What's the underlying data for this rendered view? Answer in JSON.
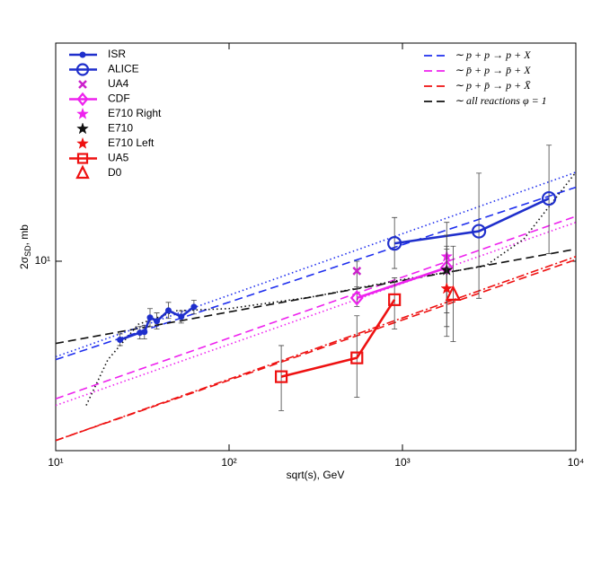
{
  "chart_data": {
    "type": "scatter",
    "x_label": "sqrt(s), GeV",
    "y_label": {
      "main": "2σ",
      "sub": "SD",
      "rest": ", mb"
    },
    "xlog": true,
    "ylog": true,
    "xlim": [
      10,
      10000
    ],
    "ylim": [
      3,
      40
    ],
    "xticks": [
      {
        "value": 10,
        "label": "10¹"
      },
      {
        "value": 100,
        "label": "10²"
      },
      {
        "value": 1000,
        "label": "10³"
      },
      {
        "value": 10000,
        "label": "10⁴"
      }
    ],
    "yticks": [
      {
        "value": 10,
        "label": "10¹"
      }
    ],
    "series": [
      {
        "name": "ISR",
        "color": "#1f2fcc",
        "marker": "dot",
        "line": true,
        "x": [
          23.5,
          30.6,
          32.5,
          35,
          38.3,
          44.7,
          53,
          62.7
        ],
        "values": [
          6.07,
          6.35,
          6.38,
          6.99,
          6.83,
          7.31,
          7.03,
          7.48
        ],
        "err_low": [
          5.85,
          6.1,
          6.1,
          6.6,
          6.5,
          6.95,
          6.75,
          7.15
        ],
        "err_high": [
          6.3,
          6.6,
          6.65,
          7.4,
          7.2,
          7.7,
          7.3,
          7.8
        ]
      },
      {
        "name": "ALICE",
        "color": "#1f2fcc",
        "marker": "circle",
        "line": true,
        "x": [
          900,
          2760,
          7000
        ],
        "values": [
          11.2,
          12.1,
          14.9
        ],
        "err_low": [
          9.55,
          7.9,
          10.5
        ],
        "err_high": [
          13.2,
          17.5,
          20.9
        ]
      },
      {
        "name": "UA4",
        "color": "#cc22cc",
        "marker": "cross",
        "line": false,
        "x": [
          546
        ],
        "values": [
          9.4
        ],
        "err_low": [
          8.5
        ],
        "err_high": [
          10.0
        ]
      },
      {
        "name": "CDF",
        "color": "#ee22ee",
        "marker": "diamond",
        "line": true,
        "x": [
          546,
          1800
        ],
        "values": [
          7.92,
          9.6
        ],
        "err_low": [
          7.5,
          8.3
        ],
        "err_high": [
          8.4,
          11.0
        ]
      },
      {
        "name": "E710 Right",
        "color": "#ee22ee",
        "marker": "star",
        "line": false,
        "x": [
          1800
        ],
        "values": [
          10.3
        ],
        "err_low": [
          7.2
        ],
        "err_high": [
          12.8
        ]
      },
      {
        "name": "E710",
        "color": "#111111",
        "marker": "star",
        "line": false,
        "x": [
          1800
        ],
        "values": [
          9.45
        ],
        "err_low": [
          6.6
        ],
        "err_high": [
          11.8
        ]
      },
      {
        "name": "E710 Left",
        "color": "#ee1111",
        "marker": "star",
        "line": false,
        "x": [
          1800
        ],
        "values": [
          8.4
        ],
        "err_low": [
          6.2
        ],
        "err_high": [
          10.8
        ]
      },
      {
        "name": "UA5",
        "color": "#ee1111",
        "marker": "square",
        "line": true,
        "x": [
          200,
          546,
          900
        ],
        "values": [
          4.8,
          5.41,
          7.83
        ],
        "err_low": [
          3.87,
          4.21,
          6.5
        ],
        "err_high": [
          5.85,
          7.07,
          9.0
        ]
      },
      {
        "name": "D0",
        "color": "#ee1111",
        "marker": "triangle",
        "line": false,
        "x": [
          1960
        ],
        "values": [
          8.1
        ],
        "err_low": [
          6.0
        ],
        "err_high": [
          11.0
        ]
      }
    ],
    "fits": [
      {
        "name": "∼ p + p → p + X",
        "color": "#1f2fee",
        "dash": "dashed",
        "x": [
          10,
          10000
        ],
        "values": [
          5.35,
          16.0
        ]
      },
      {
        "name": "∼ p̄ + p → p̄ + X",
        "color": "#ee22ee",
        "dash": "dashed",
        "x": [
          10,
          10000
        ],
        "values": [
          4.17,
          13.3
        ]
      },
      {
        "name": "∼ p + p̄ → p + X̄",
        "color": "#ee1111",
        "dash": "dashed",
        "x": [
          10,
          10000
        ],
        "values": [
          3.2,
          10.1
        ]
      },
      {
        "name": "∼ all reactions φ = 1",
        "color": "#111111",
        "dash": "dashed",
        "x": [
          10,
          10000
        ],
        "values": [
          5.93,
          10.8
        ]
      },
      {
        "color": "#1f2fee",
        "dash": "dotted",
        "x": [
          10,
          10000
        ],
        "values": [
          5.45,
          17.6
        ]
      },
      {
        "color": "#ee22ee",
        "dash": "dotted",
        "x": [
          10,
          10000
        ],
        "values": [
          4.0,
          12.8
        ]
      },
      {
        "color": "#ee1111",
        "dash": "dashdot",
        "x": [
          10,
          10000
        ],
        "values": [
          3.2,
          10.3
        ]
      },
      {
        "color": "#111111",
        "dash": "dotted",
        "x": [
          15,
          20,
          30,
          50,
          100,
          300,
          1000,
          3000,
          5000,
          10000
        ],
        "values": [
          4.0,
          5.35,
          6.7,
          7.3,
          7.4,
          7.97,
          8.9,
          9.7,
          11.5,
          17.6
        ]
      }
    ]
  }
}
